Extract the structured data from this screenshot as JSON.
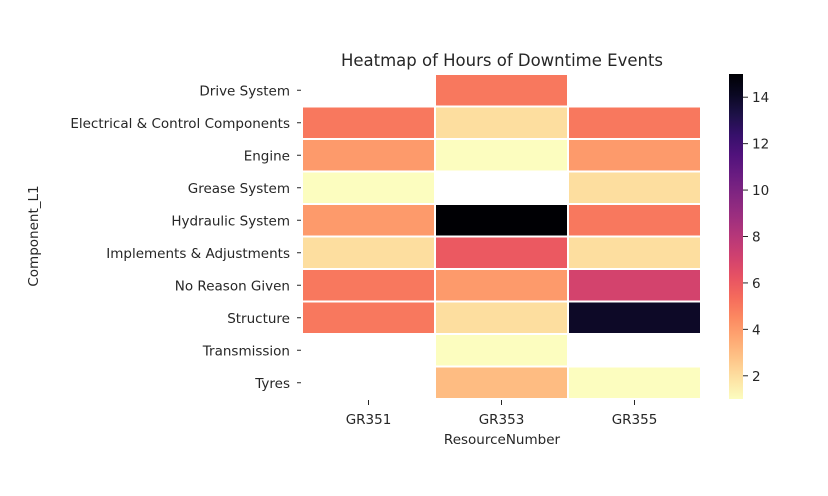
{
  "chart_data": {
    "type": "heatmap",
    "title": "Heatmap of Hours of Downtime Events",
    "xlabel": "ResourceNumber",
    "ylabel": "Component_L1",
    "x_categories": [
      "GR351",
      "GR353",
      "GR355"
    ],
    "y_categories": [
      "Drive System",
      "Electrical & Control Components",
      "Engine",
      "Grease System",
      "Hydraulic System",
      "Implements & Adjustments",
      "No Reason Given",
      "Structure",
      "Transmission",
      "Tyres"
    ],
    "values": [
      [
        null,
        5,
        null
      ],
      [
        5,
        2,
        5
      ],
      [
        4,
        1,
        4
      ],
      [
        1,
        null,
        2
      ],
      [
        4,
        15,
        5
      ],
      [
        2,
        6,
        2
      ],
      [
        5,
        4,
        7
      ],
      [
        5,
        2,
        14
      ],
      [
        null,
        1,
        null
      ],
      [
        null,
        3,
        1
      ]
    ],
    "colorbar": {
      "colormap": "magma_r",
      "range": [
        1,
        15
      ],
      "ticks": [
        2,
        4,
        6,
        8,
        10,
        12,
        14
      ]
    },
    "cell_gridlines": true,
    "missing_cells": "blank"
  }
}
